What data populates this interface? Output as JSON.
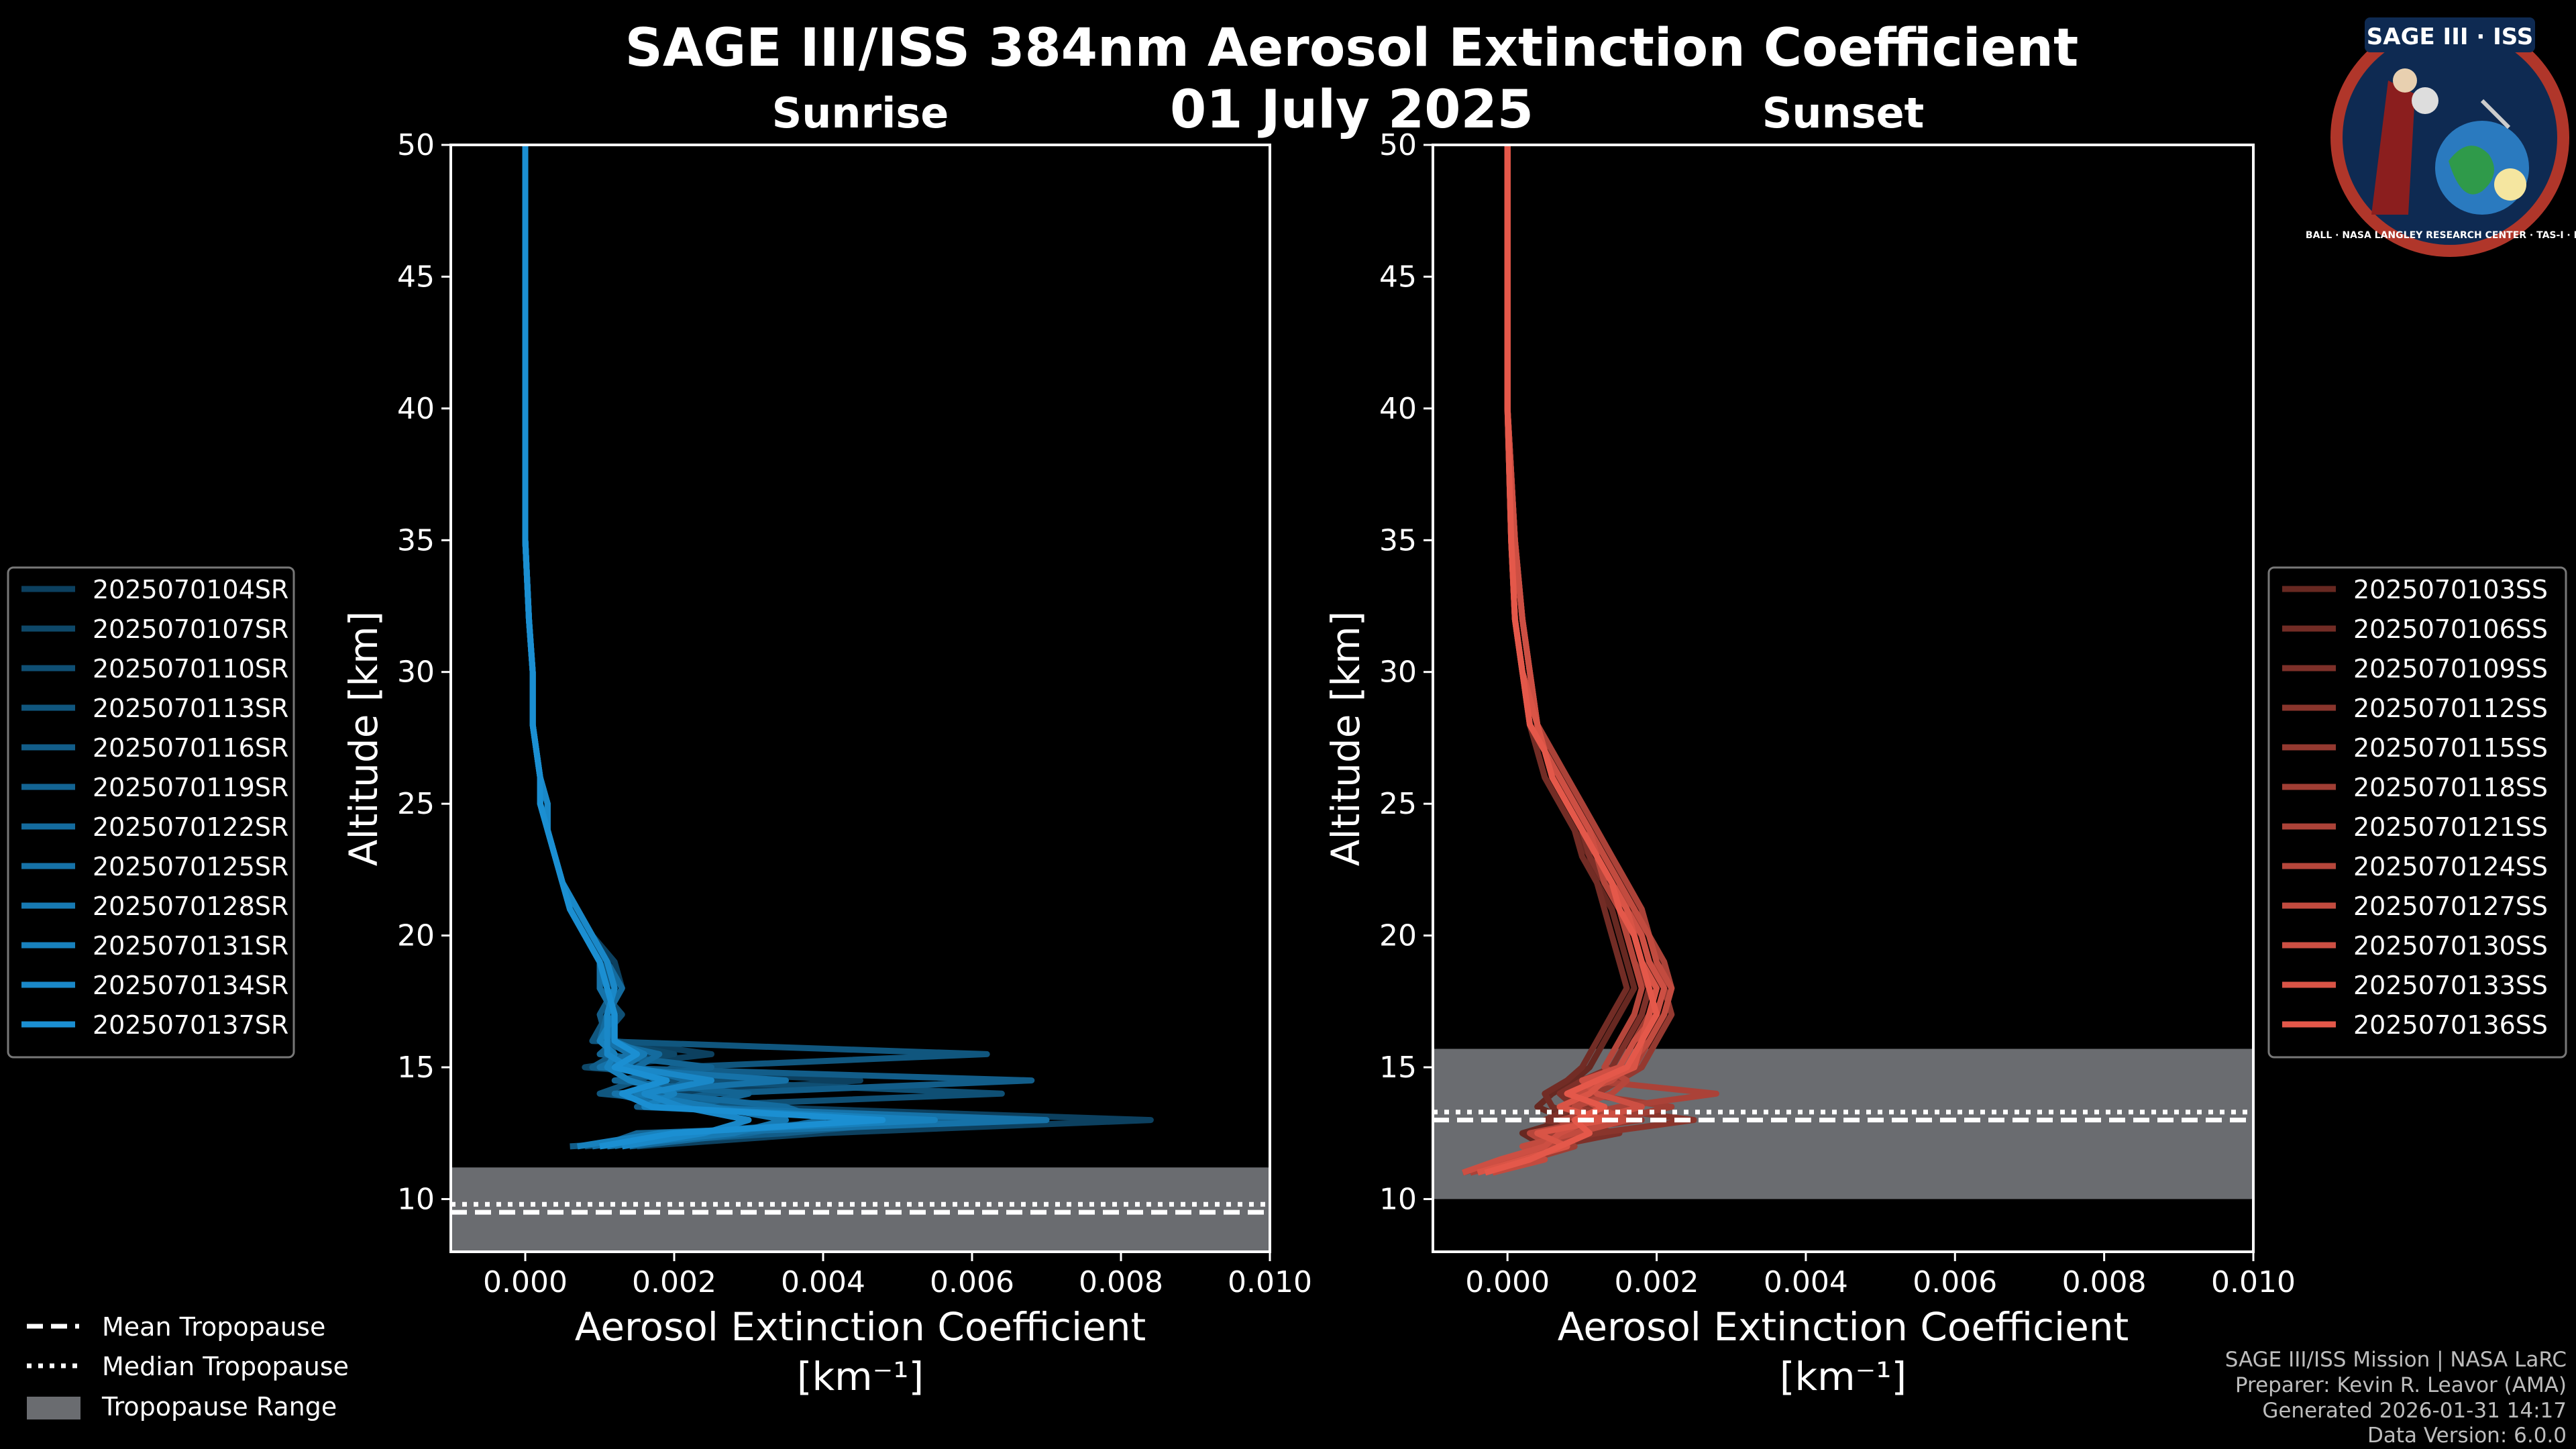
{
  "title_line1": "SAGE III/ISS 384nm Aerosol Extinction Coefficient",
  "title_line2": "01 July 2025",
  "logo": {
    "text": "SAGE III · ISS",
    "ring_text": "BALL · NASA LANGLEY RESEARCH CENTER · TAS-I · ESA"
  },
  "credits": [
    "SAGE III/ISS Mission | NASA LaRC",
    "Preparer: Kevin R. Leavor (AMA)",
    "Generated 2026-01-31 14:17",
    "Data Version: 6.0.0"
  ],
  "tropo_legend": [
    {
      "label": "Mean Tropopause",
      "style": "dashed"
    },
    {
      "label": "Median Tropopause",
      "style": "dotted"
    },
    {
      "label": "Tropopause Range",
      "style": "band"
    }
  ],
  "colors": {
    "sunrise": "#1b8fd2",
    "sunset": "#e4584a",
    "band": "#6a6c70",
    "frame": "#ffffff",
    "bg": "#000000"
  },
  "chart_data": [
    {
      "type": "line",
      "panel": "sunrise",
      "title": "Sunrise",
      "xlabel": "Aerosol Extinction Coefficient",
      "xunit": "[km⁻¹]",
      "ylabel": "Altitude [km]",
      "xlim": [
        -0.001,
        0.01
      ],
      "ylim": [
        8,
        50
      ],
      "xticks": [
        0.0,
        0.002,
        0.004,
        0.006,
        0.008,
        0.01
      ],
      "xtick_labels": [
        "0.000",
        "0.002",
        "0.004",
        "0.006",
        "0.008",
        "0.010"
      ],
      "yticks": [
        10,
        15,
        20,
        25,
        30,
        35,
        40,
        45,
        50
      ],
      "tropopause": {
        "range": [
          8,
          11.2
        ],
        "mean": 9.5,
        "median": 9.8
      },
      "altitudes": [
        12,
        12.5,
        13,
        13.5,
        14,
        14.5,
        15,
        15.5,
        16,
        17,
        18,
        19,
        20,
        21,
        22,
        23,
        24,
        25,
        26,
        28,
        30,
        32,
        35,
        40,
        45,
        50
      ],
      "series": [
        {
          "name": "2025070104SR",
          "values": [
            0.0015,
            0.004,
            0.0084,
            0.003,
            0.002,
            0.0045,
            0.001,
            0.0025,
            0.0012,
            0.0011,
            0.0013,
            0.0012,
            0.0009,
            0.0007,
            0.0005,
            0.0004,
            0.0003,
            0.0003,
            0.0002,
            0.0001,
            0.0001,
            5e-05,
            0.0,
            0.0,
            0.0,
            0.0
          ]
        },
        {
          "name": "2025070107SR",
          "values": [
            0.001,
            0.003,
            0.006,
            0.002,
            0.0015,
            0.003,
            0.0008,
            0.002,
            0.0011,
            0.0012,
            0.0011,
            0.001,
            0.0008,
            0.0006,
            0.0005,
            0.0004,
            0.0003,
            0.0002,
            0.0002,
            0.0001,
            0.0001,
            5e-05,
            0.0,
            0.0,
            0.0,
            0.0
          ]
        },
        {
          "name": "2025070110SR",
          "values": [
            0.0008,
            0.0025,
            0.005,
            0.0018,
            0.0064,
            0.002,
            0.0012,
            0.0015,
            0.001,
            0.0013,
            0.001,
            0.0011,
            0.0009,
            0.0007,
            0.0005,
            0.0004,
            0.0003,
            0.0003,
            0.0002,
            0.0001,
            0.0001,
            5e-05,
            0.0,
            0.0,
            0.0,
            0.0
          ]
        },
        {
          "name": "2025070113SR",
          "values": [
            0.0012,
            0.002,
            0.0045,
            0.0028,
            0.001,
            0.0015,
            0.002,
            0.0062,
            0.0009,
            0.0011,
            0.0012,
            0.001,
            0.0008,
            0.0006,
            0.0005,
            0.0004,
            0.0003,
            0.0002,
            0.0002,
            0.0001,
            0.0001,
            5e-05,
            0.0,
            0.0,
            0.0,
            0.0
          ]
        },
        {
          "name": "2025070116SR",
          "values": [
            0.0006,
            0.0035,
            0.0055,
            0.0015,
            0.0025,
            0.0068,
            0.0009,
            0.0012,
            0.0011,
            0.001,
            0.0012,
            0.0011,
            0.0009,
            0.0007,
            0.0005,
            0.0004,
            0.0003,
            0.0003,
            0.0002,
            0.0001,
            0.0001,
            5e-05,
            0.0,
            0.0,
            0.0,
            0.0
          ]
        },
        {
          "name": "2025070119SR",
          "values": [
            0.001,
            0.0015,
            0.0065,
            0.0022,
            0.003,
            0.0012,
            0.0025,
            0.001,
            0.0012,
            0.0012,
            0.0011,
            0.001,
            0.0008,
            0.0006,
            0.0005,
            0.0004,
            0.0003,
            0.0002,
            0.0002,
            0.0001,
            0.0001,
            5e-05,
            0.0,
            0.0,
            0.0,
            0.0
          ]
        },
        {
          "name": "2025070122SR",
          "values": [
            0.0014,
            0.003,
            0.004,
            0.0035,
            0.0018,
            0.0022,
            0.0015,
            0.0018,
            0.001,
            0.0011,
            0.0013,
            0.0011,
            0.0009,
            0.0007,
            0.0005,
            0.0004,
            0.0003,
            0.0003,
            0.0002,
            0.0001,
            0.0001,
            5e-05,
            0.0,
            0.0,
            0.0,
            0.0
          ]
        },
        {
          "name": "2025070125SR",
          "values": [
            0.0009,
            0.0022,
            0.007,
            0.0019,
            0.0012,
            0.0035,
            0.001,
            0.0014,
            0.0011,
            0.0012,
            0.001,
            0.001,
            0.0008,
            0.0006,
            0.0005,
            0.0004,
            0.0003,
            0.0002,
            0.0002,
            0.0001,
            0.0001,
            5e-05,
            0.0,
            0.0,
            0.0,
            0.0
          ]
        },
        {
          "name": "2025070128SR",
          "values": [
            0.0011,
            0.0028,
            0.0035,
            0.0025,
            0.0015,
            0.0018,
            0.0013,
            0.0016,
            0.0012,
            0.0011,
            0.0012,
            0.0011,
            0.0009,
            0.0007,
            0.0005,
            0.0004,
            0.0003,
            0.0003,
            0.0002,
            0.0001,
            0.0001,
            5e-05,
            0.0,
            0.0,
            0.0,
            0.0
          ]
        },
        {
          "name": "2025070131SR",
          "values": [
            0.0007,
            0.0018,
            0.0055,
            0.0016,
            0.002,
            0.0014,
            0.0011,
            0.0012,
            0.001,
            0.0012,
            0.0011,
            0.001,
            0.0008,
            0.0006,
            0.0005,
            0.0004,
            0.0003,
            0.0002,
            0.0002,
            0.0001,
            0.0001,
            5e-05,
            0.0,
            0.0,
            0.0,
            0.0
          ]
        },
        {
          "name": "2025070134SR",
          "values": [
            0.0013,
            0.0024,
            0.003,
            0.0021,
            0.0016,
            0.0025,
            0.0014,
            0.0011,
            0.0011,
            0.0011,
            0.0012,
            0.0011,
            0.0009,
            0.0007,
            0.0005,
            0.0004,
            0.0003,
            0.0003,
            0.0002,
            0.0001,
            0.0001,
            5e-05,
            0.0,
            0.0,
            0.0,
            0.0
          ]
        },
        {
          "name": "2025070137SR",
          "values": [
            0.001,
            0.002,
            0.0048,
            0.0017,
            0.0013,
            0.0019,
            0.0012,
            0.0015,
            0.0012,
            0.0012,
            0.0011,
            0.001,
            0.0008,
            0.0006,
            0.0005,
            0.0004,
            0.0003,
            0.0002,
            0.0002,
            0.0001,
            0.0001,
            5e-05,
            0.0,
            0.0,
            0.0,
            0.0
          ]
        }
      ]
    },
    {
      "type": "line",
      "panel": "sunset",
      "title": "Sunset",
      "xlabel": "Aerosol Extinction Coefficient",
      "xunit": "[km⁻¹]",
      "ylabel": "Altitude [km]",
      "xlim": [
        -0.001,
        0.01
      ],
      "ylim": [
        8,
        50
      ],
      "xticks": [
        0.0,
        0.002,
        0.004,
        0.006,
        0.008,
        0.01
      ],
      "xtick_labels": [
        "0.000",
        "0.002",
        "0.004",
        "0.006",
        "0.008",
        "0.010"
      ],
      "yticks": [
        10,
        15,
        20,
        25,
        30,
        35,
        40,
        45,
        50
      ],
      "tropopause": {
        "range": [
          10,
          15.7
        ],
        "mean": 13.0,
        "median": 13.3
      },
      "altitudes": [
        11,
        11.5,
        12,
        12.5,
        13,
        13.5,
        14,
        14.5,
        15,
        16,
        17,
        18,
        19,
        20,
        21,
        22,
        23,
        24,
        25,
        26,
        27,
        28,
        30,
        32,
        35,
        40,
        45,
        50
      ],
      "series": [
        {
          "name": "2025070103SS",
          "values": [
            -0.0005,
            0.0,
            0.0005,
            0.0002,
            0.0008,
            0.0004,
            0.0006,
            0.0009,
            0.0011,
            0.0013,
            0.0015,
            0.0017,
            0.0016,
            0.0015,
            0.0014,
            0.0012,
            0.0011,
            0.0009,
            0.0007,
            0.0005,
            0.0004,
            0.0003,
            0.0002,
            0.0001,
            5e-05,
            0.0,
            0.0,
            0.0
          ]
        },
        {
          "name": "2025070106SS",
          "values": [
            -0.0003,
            0.0002,
            0.0008,
            0.0004,
            0.001,
            0.0006,
            0.0005,
            0.0008,
            0.001,
            0.0012,
            0.0014,
            0.0016,
            0.0015,
            0.0014,
            0.0013,
            0.0012,
            0.001,
            0.0009,
            0.0007,
            0.0005,
            0.0004,
            0.0003,
            0.0002,
            0.0001,
            5e-05,
            0.0,
            0.0,
            0.0
          ]
        },
        {
          "name": "2025070109SS",
          "values": [
            -0.0004,
            0.0001,
            0.0006,
            0.0015,
            0.0005,
            0.0009,
            0.0007,
            0.001,
            0.0014,
            0.0016,
            0.0018,
            0.0019,
            0.0017,
            0.0016,
            0.0015,
            0.0013,
            0.0011,
            0.001,
            0.0008,
            0.0006,
            0.0005,
            0.0003,
            0.0002,
            0.0001,
            5e-05,
            0.0,
            0.0,
            0.0
          ]
        },
        {
          "name": "2025070112SS",
          "values": [
            -0.0002,
            0.0004,
            0.0003,
            0.0012,
            0.0025,
            0.0011,
            0.0008,
            0.0012,
            0.0016,
            0.0018,
            0.002,
            0.0021,
            0.0019,
            0.0018,
            0.0017,
            0.0015,
            0.0013,
            0.0011,
            0.0009,
            0.0007,
            0.0005,
            0.0004,
            0.0003,
            0.0002,
            0.0001,
            0.0,
            0.0,
            0.0
          ]
        },
        {
          "name": "2025070115SS",
          "values": [
            -0.0006,
            0.0,
            0.0007,
            0.0005,
            0.0018,
            0.0008,
            0.0012,
            0.0015,
            0.0018,
            0.002,
            0.0022,
            0.0021,
            0.002,
            0.0019,
            0.0018,
            0.0016,
            0.0014,
            0.0012,
            0.001,
            0.0008,
            0.0006,
            0.0004,
            0.0003,
            0.0002,
            0.0001,
            0.0,
            0.0,
            0.0
          ]
        },
        {
          "name": "2025070118SS",
          "values": [
            -0.0003,
            0.0003,
            0.0009,
            0.0006,
            0.0014,
            0.0022,
            0.001,
            0.0013,
            0.0015,
            0.0017,
            0.0019,
            0.002,
            0.0018,
            0.0017,
            0.0016,
            0.0015,
            0.0013,
            0.0011,
            0.0009,
            0.0007,
            0.0005,
            0.0004,
            0.0003,
            0.0002,
            0.0001,
            0.0,
            0.0,
            0.0
          ]
        },
        {
          "name": "2025070121SS",
          "values": [
            -0.0005,
            0.0002,
            0.0004,
            0.001,
            0.0007,
            0.0015,
            0.0028,
            0.0011,
            0.0017,
            0.0019,
            0.0021,
            0.0022,
            0.0021,
            0.0019,
            0.0018,
            0.0016,
            0.0014,
            0.0012,
            0.001,
            0.0008,
            0.0006,
            0.0004,
            0.0003,
            0.0002,
            0.0001,
            0.0,
            0.0,
            0.0
          ]
        },
        {
          "name": "2025070124SS",
          "values": [
            -0.0004,
            0.0001,
            0.0006,
            0.0003,
            0.0012,
            0.0009,
            0.0014,
            0.0016,
            0.0013,
            0.0015,
            0.0017,
            0.0018,
            0.0017,
            0.0016,
            0.0015,
            0.0013,
            0.0012,
            0.001,
            0.0008,
            0.0006,
            0.0005,
            0.0003,
            0.0002,
            0.0001,
            5e-05,
            0.0,
            0.0,
            0.0
          ]
        },
        {
          "name": "2025070127SS",
          "values": [
            -0.0002,
            0.0005,
            0.0002,
            0.0009,
            0.0016,
            0.0012,
            0.0009,
            0.0014,
            0.0016,
            0.0019,
            0.0021,
            0.0022,
            0.002,
            0.0019,
            0.0017,
            0.0015,
            0.0013,
            0.0011,
            0.0009,
            0.0007,
            0.0005,
            0.0004,
            0.0003,
            0.0002,
            0.0001,
            0.0,
            0.0,
            0.0
          ]
        },
        {
          "name": "2025070130SS",
          "values": [
            -0.0006,
            -0.0001,
            0.0005,
            0.0007,
            0.0011,
            0.0018,
            0.0012,
            0.001,
            0.0015,
            0.0017,
            0.002,
            0.0021,
            0.0019,
            0.0018,
            0.0016,
            0.0014,
            0.0012,
            0.0011,
            0.0009,
            0.0007,
            0.0005,
            0.0004,
            0.0003,
            0.0002,
            0.0001,
            0.0,
            0.0,
            0.0
          ]
        },
        {
          "name": "2025070133SS",
          "values": [
            -0.0004,
            0.0002,
            0.0008,
            0.0004,
            0.0013,
            0.0007,
            0.0011,
            0.0013,
            0.0017,
            0.0018,
            0.0019,
            0.002,
            0.0018,
            0.0017,
            0.0016,
            0.0014,
            0.0012,
            0.001,
            0.0008,
            0.0006,
            0.0005,
            0.0004,
            0.0002,
            0.0001,
            5e-05,
            0.0,
            0.0,
            0.0
          ]
        },
        {
          "name": "2025070136SS",
          "values": [
            -0.0003,
            0.0003,
            0.0007,
            0.0011,
            0.0009,
            0.0013,
            0.0008,
            0.0012,
            0.0016,
            0.0018,
            0.002,
            0.0019,
            0.0018,
            0.0017,
            0.0015,
            0.0014,
            0.0012,
            0.001,
            0.0008,
            0.0006,
            0.0005,
            0.0003,
            0.0002,
            0.0001,
            5e-05,
            0.0,
            0.0,
            0.0
          ]
        }
      ]
    }
  ]
}
